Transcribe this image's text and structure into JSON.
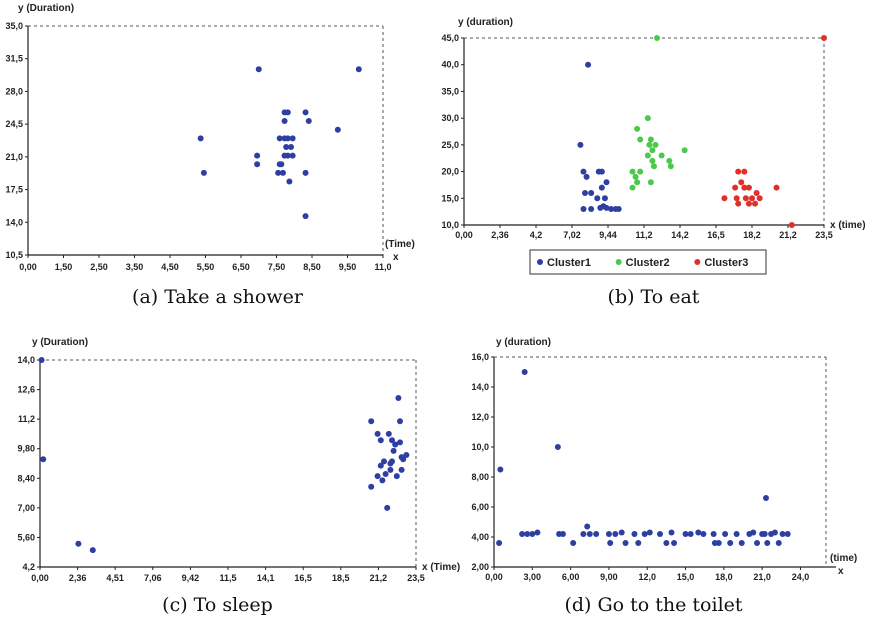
{
  "colors": {
    "cluster1": "#2e3fa3",
    "cluster2": "#4cc94c",
    "cluster3": "#e0302a",
    "axis": "#222222"
  },
  "chart_data": [
    {
      "id": "a",
      "type": "scatter",
      "title": "",
      "caption": "(a) Take a shower",
      "xlabel": "(Time)",
      "xlabel_suffix": "x",
      "ylabel": "y (Duration)",
      "xlim": [
        0,
        11
      ],
      "ylim": [
        8.5,
        35
      ],
      "xticks": [
        "0,00",
        "1,50",
        "2,50",
        "3,50",
        "4,50",
        "5,50",
        "6,50",
        "7,50",
        "8,50",
        "9,50",
        "11,0"
      ],
      "yticks": [
        "10,5",
        "14,0",
        "17,5",
        "21,0",
        "24,5",
        "28,0",
        "31,5",
        "35,0"
      ],
      "legend": null,
      "series": [
        {
          "color_key": "cluster1",
          "x_tick_index": true,
          "points": [
            [
              5.35,
              22
            ],
            [
              5.45,
              18
            ],
            [
              7.15,
              30
            ],
            [
              7.1,
              20
            ],
            [
              7.1,
              19
            ],
            [
              7.75,
              18
            ],
            [
              7.8,
              19
            ],
            [
              7.9,
              18
            ],
            [
              7.85,
              19
            ],
            [
              7.8,
              22
            ],
            [
              7.95,
              22
            ],
            [
              8.05,
              22
            ],
            [
              8.2,
              22
            ],
            [
              8.0,
              21
            ],
            [
              8.15,
              21
            ],
            [
              8.05,
              20
            ],
            [
              7.95,
              20
            ],
            [
              8.2,
              20
            ],
            [
              8.1,
              17
            ],
            [
              7.95,
              25
            ],
            [
              8.05,
              25
            ],
            [
              7.95,
              24
            ],
            [
              8.6,
              25
            ],
            [
              8.7,
              24
            ],
            [
              8.6,
              18
            ],
            [
              8.6,
              13
            ],
            [
              9.6,
              23
            ],
            [
              10.25,
              30
            ]
          ]
        }
      ]
    },
    {
      "id": "b",
      "type": "scatter",
      "title": "",
      "caption": "(b) To eat",
      "xlabel": "(time)",
      "xlabel_prefix": "x",
      "ylabel": "y (duration)",
      "xlim": [
        0,
        23.5
      ],
      "ylim": [
        10,
        45
      ],
      "xticks": [
        "0,00",
        "2,36",
        "4,2",
        "7,02",
        "9,44",
        "11,2",
        "14,2",
        "16,5",
        "18,2",
        "21,2",
        "23,5"
      ],
      "yticks": [
        "10,0",
        "15,0",
        "20,0",
        "25,0",
        "30,0",
        "35,0",
        "40,0",
        "45,0"
      ],
      "legend": [
        "Cluster1",
        "Cluster2",
        "Cluster3"
      ],
      "series": [
        {
          "name": "Cluster1",
          "color_key": "cluster1",
          "points": [
            [
              8.1,
              40
            ],
            [
              7.6,
              25
            ],
            [
              7.8,
              20
            ],
            [
              8.0,
              19
            ],
            [
              7.9,
              16
            ],
            [
              8.3,
              16
            ],
            [
              8.8,
              20
            ],
            [
              9.0,
              20
            ],
            [
              9.3,
              18
            ],
            [
              9.0,
              17
            ],
            [
              8.7,
              15
            ],
            [
              9.2,
              15
            ],
            [
              7.8,
              13
            ],
            [
              8.3,
              13
            ],
            [
              8.9,
              13.2
            ],
            [
              9.1,
              13.5
            ],
            [
              9.3,
              13.2
            ],
            [
              9.6,
              13
            ],
            [
              9.9,
              13
            ],
            [
              10.1,
              13
            ]
          ]
        },
        {
          "name": "Cluster2",
          "color_key": "cluster2",
          "points": [
            [
              12.6,
              45
            ],
            [
              12.0,
              30
            ],
            [
              11.3,
              28
            ],
            [
              11.5,
              26
            ],
            [
              12.2,
              26
            ],
            [
              12.1,
              25
            ],
            [
              12.3,
              24
            ],
            [
              12.5,
              25
            ],
            [
              12.9,
              23
            ],
            [
              12.0,
              23
            ],
            [
              12.3,
              22
            ],
            [
              13.4,
              22
            ],
            [
              13.5,
              21
            ],
            [
              12.4,
              21
            ],
            [
              14.4,
              24
            ],
            [
              11.0,
              20
            ],
            [
              11.2,
              19
            ],
            [
              11.3,
              18
            ],
            [
              11.0,
              17
            ],
            [
              12.2,
              18
            ],
            [
              11.5,
              20
            ]
          ]
        },
        {
          "name": "Cluster3",
          "color_key": "cluster3",
          "points": [
            [
              17.9,
              20
            ],
            [
              18.3,
              20
            ],
            [
              18.1,
              18
            ],
            [
              17.7,
              17
            ],
            [
              18.3,
              17
            ],
            [
              18.6,
              17
            ],
            [
              20.4,
              17
            ],
            [
              19.1,
              16
            ],
            [
              17.0,
              15
            ],
            [
              17.8,
              15
            ],
            [
              18.4,
              15
            ],
            [
              18.8,
              15
            ],
            [
              19.3,
              15
            ],
            [
              17.9,
              14
            ],
            [
              18.6,
              14
            ],
            [
              19.0,
              14
            ],
            [
              21.4,
              10
            ],
            [
              23.5,
              45
            ]
          ]
        }
      ]
    },
    {
      "id": "c",
      "type": "scatter",
      "title": "",
      "caption": "(c) To sleep",
      "xlabel": "(Time)",
      "xlabel_prefix": "x",
      "ylabel": "y (Duration)",
      "xlim": [
        0,
        23.5
      ],
      "ylim": [
        4.2,
        14
      ],
      "xticks": [
        "0,00",
        "2,36",
        "4,51",
        "7,06",
        "9,42",
        "11,5",
        "14,1",
        "16,5",
        "18,5",
        "21,2",
        "23,5"
      ],
      "yticks": [
        "4,2",
        "5,60",
        "7,00",
        "8,40",
        "9,80",
        "11,2",
        "12,6",
        "14,0"
      ],
      "legend": null,
      "series": [
        {
          "color_key": "cluster1",
          "points": [
            [
              0.1,
              14
            ],
            [
              0.2,
              9.3
            ],
            [
              2.4,
              5.3
            ],
            [
              3.3,
              5.0
            ],
            [
              20.7,
              11.1
            ],
            [
              20.7,
              8.0
            ],
            [
              21.1,
              10.5
            ],
            [
              21.3,
              10.2
            ],
            [
              21.5,
              9.2
            ],
            [
              21.3,
              9.0
            ],
            [
              21.1,
              8.5
            ],
            [
              21.4,
              8.3
            ],
            [
              21.6,
              8.6
            ],
            [
              21.7,
              7.0
            ],
            [
              21.8,
              10.5
            ],
            [
              22.0,
              10.2
            ],
            [
              22.1,
              9.7
            ],
            [
              22.0,
              9.2
            ],
            [
              21.9,
              8.8
            ],
            [
              22.3,
              8.5
            ],
            [
              22.4,
              12.2
            ],
            [
              22.5,
              11.1
            ],
            [
              22.5,
              10.1
            ],
            [
              22.6,
              9.4
            ],
            [
              22.7,
              9.3
            ],
            [
              22.9,
              9.5
            ],
            [
              22.6,
              8.8
            ],
            [
              21.9,
              9.1
            ],
            [
              22.2,
              10.0
            ]
          ]
        }
      ]
    },
    {
      "id": "d",
      "type": "scatter",
      "title": "",
      "caption": "(d) Go to the toilet",
      "xlabel": "(time)",
      "xlabel_suffix": "x",
      "ylabel": "y (duration)",
      "xlim": [
        0,
        26
      ],
      "ylim": [
        2,
        16
      ],
      "xticks": [
        "0,00",
        "3,00",
        "6,00",
        "9,00",
        "12,0",
        "15,0",
        "18,0",
        "21,0",
        "24,0"
      ],
      "yticks": [
        "2,00",
        "4,00",
        "6,00",
        "8,00",
        "10,0",
        "12,0",
        "14,0",
        "16,0"
      ],
      "legend": null,
      "series": [
        {
          "color_key": "cluster1",
          "points": [
            [
              0.4,
              3.6
            ],
            [
              0.5,
              8.5
            ],
            [
              2.2,
              4.2
            ],
            [
              2.4,
              15.0
            ],
            [
              2.6,
              4.2
            ],
            [
              3.0,
              4.2
            ],
            [
              3.4,
              4.3
            ],
            [
              5.0,
              10.0
            ],
            [
              5.1,
              4.2
            ],
            [
              5.4,
              4.2
            ],
            [
              6.2,
              3.6
            ],
            [
              7.0,
              4.2
            ],
            [
              7.3,
              4.7
            ],
            [
              7.5,
              4.2
            ],
            [
              8.0,
              4.2
            ],
            [
              9.0,
              4.2
            ],
            [
              9.1,
              3.6
            ],
            [
              9.5,
              4.2
            ],
            [
              10.0,
              4.3
            ],
            [
              10.3,
              3.6
            ],
            [
              11.0,
              4.2
            ],
            [
              11.3,
              3.6
            ],
            [
              11.8,
              4.2
            ],
            [
              12.2,
              4.3
            ],
            [
              13.0,
              4.2
            ],
            [
              13.5,
              3.6
            ],
            [
              13.9,
              4.3
            ],
            [
              14.1,
              3.6
            ],
            [
              15.0,
              4.2
            ],
            [
              15.4,
              4.2
            ],
            [
              16.0,
              4.3
            ],
            [
              16.4,
              4.2
            ],
            [
              17.2,
              4.2
            ],
            [
              17.3,
              3.6
            ],
            [
              17.6,
              3.6
            ],
            [
              18.1,
              4.2
            ],
            [
              18.5,
              3.6
            ],
            [
              19.0,
              4.2
            ],
            [
              19.4,
              3.6
            ],
            [
              20.0,
              4.2
            ],
            [
              20.3,
              4.3
            ],
            [
              20.6,
              3.6
            ],
            [
              21.0,
              4.2
            ],
            [
              21.2,
              4.2
            ],
            [
              21.3,
              6.6
            ],
            [
              21.4,
              3.6
            ],
            [
              21.7,
              4.2
            ],
            [
              22.0,
              4.3
            ],
            [
              22.3,
              3.6
            ],
            [
              22.6,
              4.2
            ],
            [
              23.0,
              4.2
            ]
          ]
        }
      ]
    }
  ]
}
